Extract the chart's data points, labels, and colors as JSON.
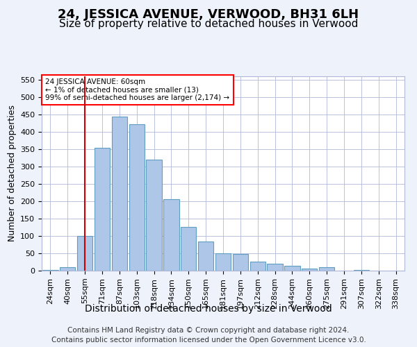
{
  "title": "24, JESSICA AVENUE, VERWOOD, BH31 6LH",
  "subtitle": "Size of property relative to detached houses in Verwood",
  "xlabel": "Distribution of detached houses by size in Verwood",
  "ylabel": "Number of detached properties",
  "footnote1": "Contains HM Land Registry data © Crown copyright and database right 2024.",
  "footnote2": "Contains public sector information licensed under the Open Government Licence v3.0.",
  "annotation_title": "24 JESSICA AVENUE: 60sqm",
  "annotation_line2": "← 1% of detached houses are smaller (13)",
  "annotation_line3": "99% of semi-detached houses are larger (2,174) →",
  "bar_values": [
    2,
    10,
    100,
    355,
    445,
    422,
    320,
    207,
    127,
    85,
    50,
    48,
    26,
    20,
    15,
    6,
    10,
    1,
    2,
    1,
    1
  ],
  "categories": [
    "24sqm",
    "40sqm",
    "55sqm",
    "71sqm",
    "87sqm",
    "103sqm",
    "118sqm",
    "134sqm",
    "150sqm",
    "165sqm",
    "181sqm",
    "197sqm",
    "212sqm",
    "228sqm",
    "244sqm",
    "260sqm",
    "275sqm",
    "291sqm",
    "307sqm",
    "322sqm",
    "338sqm"
  ],
  "bar_color": "#aec6e8",
  "bar_edge_color": "#5f9ec0",
  "vline_x": 2,
  "vline_color": "#cc0000",
  "ylim": [
    0,
    560
  ],
  "yticks": [
    0,
    50,
    100,
    150,
    200,
    250,
    300,
    350,
    400,
    450,
    500,
    550
  ],
  "bg_color": "#eef2fb",
  "plot_bg_color": "#ffffff",
  "grid_color": "#b0b8d8",
  "title_fontsize": 13,
  "subtitle_fontsize": 11,
  "xlabel_fontsize": 10,
  "ylabel_fontsize": 9,
  "tick_fontsize": 8,
  "footnote_fontsize": 7.5
}
